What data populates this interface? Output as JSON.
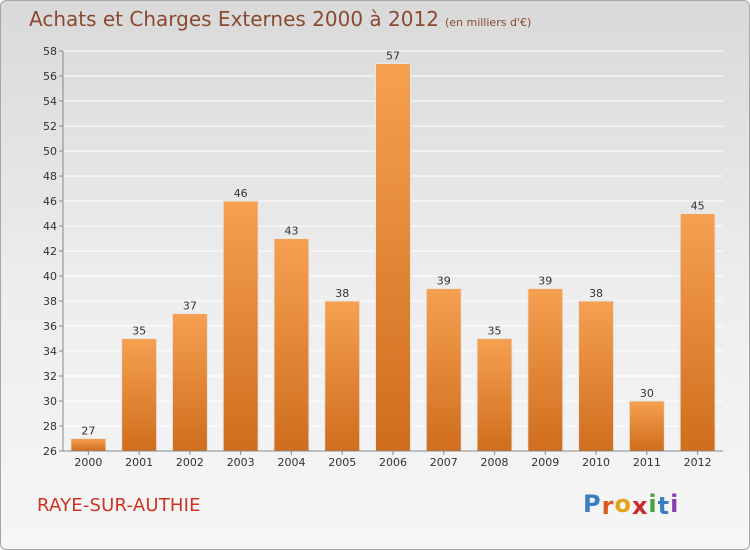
{
  "title": "Achats et Charges Externes 2000 à 2012",
  "unit": "(en milliers d'€)",
  "place": "RAYE-SUR-AUTHIE",
  "logo": {
    "letters": [
      "P",
      "r",
      "o",
      "x",
      "i",
      "t",
      "i"
    ],
    "colors": [
      "#3b7ec4",
      "#d9591f",
      "#e4a11b",
      "#cc2a2a",
      "#4aa23c",
      "#3b7ec4",
      "#8a3fb0"
    ]
  },
  "chart_data": {
    "type": "bar",
    "categories": [
      "2000",
      "2001",
      "2002",
      "2003",
      "2004",
      "2005",
      "2006",
      "2007",
      "2008",
      "2009",
      "2010",
      "2011",
      "2012"
    ],
    "values": [
      27,
      35,
      37,
      46,
      43,
      38,
      57,
      39,
      35,
      39,
      38,
      30,
      45
    ],
    "value_labels": [
      "27",
      "35",
      "37",
      "46",
      "43",
      "38",
      "57",
      "39",
      "35",
      "39",
      "38",
      "30",
      "45"
    ],
    "ylim": [
      26,
      58
    ],
    "yticks": [
      "26",
      "28",
      "30",
      "32",
      "34",
      "36",
      "38",
      "40",
      "42",
      "44",
      "46",
      "48",
      "50",
      "52",
      "54",
      "56",
      "58"
    ],
    "grid": true,
    "bar_color": "#f0913a",
    "bar_color_dark": "#c7671a",
    "grid_color": "#ffffff"
  }
}
